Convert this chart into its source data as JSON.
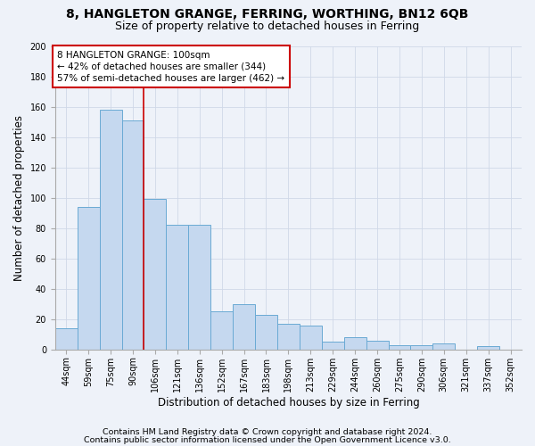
{
  "title1": "8, HANGLETON GRANGE, FERRING, WORTHING, BN12 6QB",
  "title2": "Size of property relative to detached houses in Ferring",
  "xlabel": "Distribution of detached houses by size in Ferring",
  "ylabel": "Number of detached properties",
  "categories": [
    "44sqm",
    "59sqm",
    "75sqm",
    "90sqm",
    "106sqm",
    "121sqm",
    "136sqm",
    "152sqm",
    "167sqm",
    "183sqm",
    "198sqm",
    "213sqm",
    "229sqm",
    "244sqm",
    "260sqm",
    "275sqm",
    "290sqm",
    "306sqm",
    "321sqm",
    "337sqm",
    "352sqm"
  ],
  "values": [
    14,
    94,
    158,
    151,
    99,
    82,
    82,
    25,
    30,
    23,
    17,
    16,
    5,
    8,
    6,
    3,
    3,
    4,
    0,
    2,
    0
  ],
  "bar_color": "#c5d8ef",
  "bar_edge_color": "#6aaad4",
  "vline_x_idx": 3.5,
  "annotation_line1": "8 HANGLETON GRANGE: 100sqm",
  "annotation_line2": "← 42% of detached houses are smaller (344)",
  "annotation_line3": "57% of semi-detached houses are larger (462) →",
  "annotation_box_color": "#ffffff",
  "annotation_box_edge": "#cc0000",
  "vline_color": "#cc0000",
  "ylim": [
    0,
    200
  ],
  "yticks": [
    0,
    20,
    40,
    60,
    80,
    100,
    120,
    140,
    160,
    180,
    200
  ],
  "grid_color": "#d0d8e8",
  "bg_color": "#eef2f9",
  "footer1": "Contains HM Land Registry data © Crown copyright and database right 2024.",
  "footer2": "Contains public sector information licensed under the Open Government Licence v3.0.",
  "title1_fontsize": 10,
  "title2_fontsize": 9,
  "xlabel_fontsize": 8.5,
  "ylabel_fontsize": 8.5,
  "tick_fontsize": 7,
  "footer_fontsize": 6.8,
  "annot_fontsize": 7.5
}
